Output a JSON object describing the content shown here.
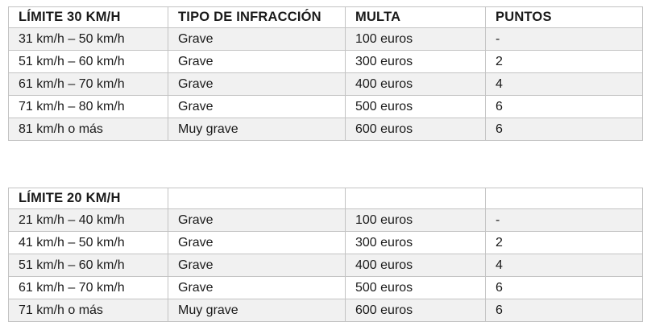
{
  "colors": {
    "page_background": "#ffffff",
    "grid_border": "#c3c3c3",
    "stripe_row": "#f1f1f1",
    "text": "#1a1a1a"
  },
  "tables": [
    {
      "title": "LÍMITE 30 KM/H",
      "headers": [
        "LÍMITE 30 KM/H",
        "TIPO DE INFRACCIÓN",
        "MULTA",
        "PUNTOS"
      ],
      "rows": [
        [
          "31 km/h – 50 km/h",
          "Grave",
          "100 euros",
          "-"
        ],
        [
          "51 km/h – 60 km/h",
          "Grave",
          "300 euros",
          "2"
        ],
        [
          "61 km/h – 70 km/h",
          "Grave",
          "400 euros",
          "4"
        ],
        [
          "71 km/h – 80 km/h",
          "Grave",
          "500 euros",
          "6"
        ],
        [
          "81 km/h o más",
          "Muy grave",
          "600 euros",
          "6"
        ]
      ]
    },
    {
      "title": "LÍMITE 20 KM/H",
      "headers": [
        "LÍMITE 20 KM/H",
        "",
        "",
        ""
      ],
      "rows": [
        [
          "21 km/h – 40 km/h",
          "Grave",
          "100 euros",
          "-"
        ],
        [
          "41 km/h – 50 km/h",
          "Grave",
          "300 euros",
          "2"
        ],
        [
          "51 km/h – 60 km/h",
          "Grave",
          "400 euros",
          "4"
        ],
        [
          "61 km/h – 70 km/h",
          "Grave",
          "500 euros",
          "6"
        ],
        [
          "71 km/h o más",
          "Muy grave",
          "600 euros",
          "6"
        ]
      ]
    }
  ]
}
